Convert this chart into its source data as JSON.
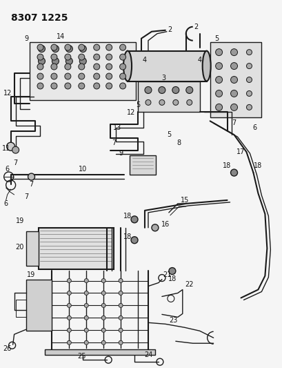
{
  "title": "8307 1225",
  "bg_color": "#f5f5f5",
  "line_color": "#1a1a1a",
  "title_fontsize": 10,
  "label_fontsize": 7,
  "fig_width": 4.1,
  "fig_height": 5.33,
  "dpi": 100
}
